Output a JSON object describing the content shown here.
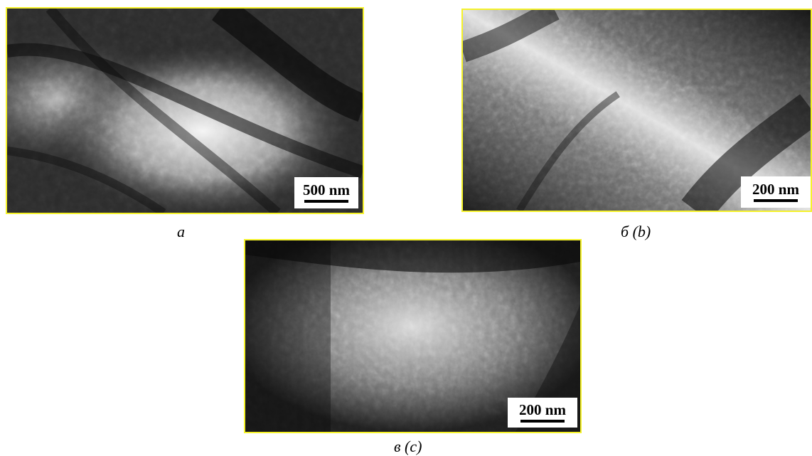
{
  "figure": {
    "panels": [
      {
        "id": "a",
        "caption": "a",
        "scale_label": "500 nm"
      },
      {
        "id": "b",
        "caption": "б (b)",
        "scale_label": "200 nm"
      },
      {
        "id": "c",
        "caption": "в (c)",
        "scale_label": "200 nm"
      }
    ]
  },
  "colors": {
    "frame_border": "#f5f22a",
    "scale_background": "#ffffff",
    "scale_text": "#000000"
  }
}
